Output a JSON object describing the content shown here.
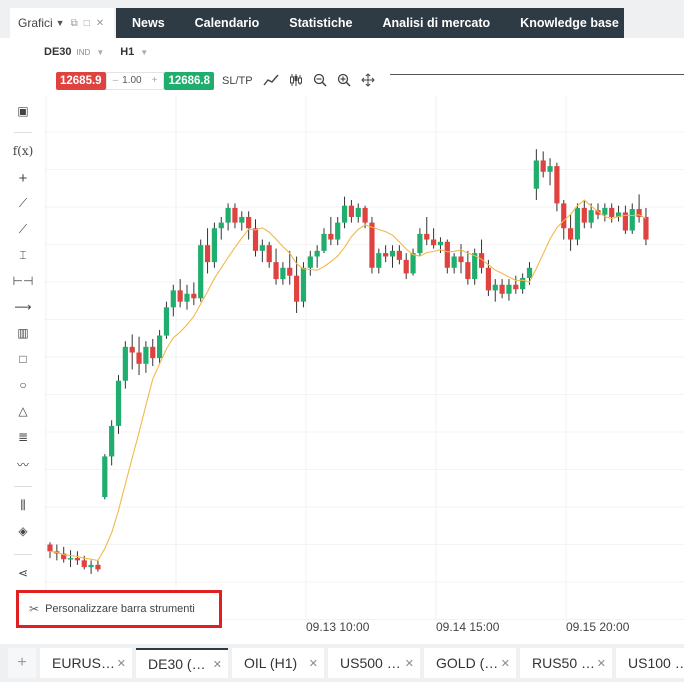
{
  "panel": {
    "label": "Grafici",
    "icons": [
      "caret-down-icon",
      "popout-icon",
      "maximize-icon",
      "close-icon"
    ]
  },
  "nav": {
    "tabs": [
      "News",
      "Calendario",
      "Statistiche",
      "Analisi di mercato",
      "Knowledge base"
    ]
  },
  "chart_header": {
    "symbol": "DE30",
    "symbol_type": "IND",
    "timeframe": "H1"
  },
  "trade": {
    "sell_price": "12685.9",
    "quantity": "1.00",
    "buy_price": "12686.8",
    "sltp": "SL/TP"
  },
  "tooltip": {
    "text": "Personalizzare barra strumenti"
  },
  "colors": {
    "up": "#1fae6d",
    "down": "#e0423f",
    "ma": "#f0b94a",
    "nav_bg": "#2e3a44",
    "highlight": "#e02020"
  },
  "chart_data": {
    "type": "candlestick",
    "x_tick_labels": [
      "09.13 10:00",
      "09.14 15:00",
      "09.15 20:00"
    ],
    "ylim": [
      12360,
      12800
    ],
    "candles": [
      [
        12410,
        12412,
        12398,
        12404
      ],
      [
        12404,
        12410,
        12396,
        12402
      ],
      [
        12402,
        12408,
        12394,
        12397
      ],
      [
        12397,
        12405,
        12390,
        12398
      ],
      [
        12398,
        12404,
        12392,
        12396
      ],
      [
        12396,
        12400,
        12388,
        12390
      ],
      [
        12390,
        12396,
        12384,
        12392
      ],
      [
        12392,
        12396,
        12386,
        12388
      ],
      [
        12452,
        12490,
        12450,
        12488
      ],
      [
        12488,
        12520,
        12480,
        12515
      ],
      [
        12515,
        12560,
        12508,
        12555
      ],
      [
        12555,
        12590,
        12548,
        12585
      ],
      [
        12585,
        12596,
        12565,
        12580
      ],
      [
        12580,
        12594,
        12560,
        12570
      ],
      [
        12570,
        12590,
        12562,
        12585
      ],
      [
        12585,
        12592,
        12568,
        12575
      ],
      [
        12575,
        12600,
        12570,
        12595
      ],
      [
        12595,
        12625,
        12592,
        12620
      ],
      [
        12620,
        12640,
        12612,
        12635
      ],
      [
        12635,
        12645,
        12620,
        12625
      ],
      [
        12625,
        12640,
        12618,
        12632
      ],
      [
        12632,
        12642,
        12622,
        12628
      ],
      [
        12628,
        12680,
        12625,
        12675
      ],
      [
        12675,
        12690,
        12650,
        12660
      ],
      [
        12660,
        12695,
        12655,
        12690
      ],
      [
        12690,
        12700,
        12680,
        12695
      ],
      [
        12695,
        12712,
        12688,
        12708
      ],
      [
        12708,
        12712,
        12690,
        12695
      ],
      [
        12695,
        12705,
        12688,
        12700
      ],
      [
        12700,
        12705,
        12680,
        12690
      ],
      [
        12690,
        12698,
        12665,
        12670
      ],
      [
        12670,
        12680,
        12660,
        12675
      ],
      [
        12675,
        12678,
        12655,
        12660
      ],
      [
        12660,
        12672,
        12640,
        12645
      ],
      [
        12645,
        12660,
        12640,
        12655
      ],
      [
        12655,
        12670,
        12640,
        12648
      ],
      [
        12648,
        12665,
        12615,
        12625
      ],
      [
        12625,
        12660,
        12620,
        12655
      ],
      [
        12655,
        12670,
        12648,
        12665
      ],
      [
        12665,
        12675,
        12655,
        12670
      ],
      [
        12670,
        12690,
        12668,
        12685
      ],
      [
        12685,
        12700,
        12675,
        12680
      ],
      [
        12680,
        12700,
        12675,
        12695
      ],
      [
        12695,
        12718,
        12690,
        12710
      ],
      [
        12710,
        12715,
        12695,
        12700
      ],
      [
        12700,
        12712,
        12695,
        12708
      ],
      [
        12708,
        12710,
        12690,
        12695
      ],
      [
        12695,
        12700,
        12650,
        12655
      ],
      [
        12655,
        12672,
        12650,
        12668
      ],
      [
        12668,
        12675,
        12660,
        12665
      ],
      [
        12665,
        12675,
        12655,
        12670
      ],
      [
        12670,
        12675,
        12658,
        12662
      ],
      [
        12662,
        12668,
        12645,
        12650
      ],
      [
        12650,
        12672,
        12648,
        12668
      ],
      [
        12668,
        12690,
        12665,
        12685
      ],
      [
        12685,
        12700,
        12675,
        12680
      ],
      [
        12680,
        12690,
        12672,
        12675
      ],
      [
        12675,
        12682,
        12668,
        12678
      ],
      [
        12678,
        12680,
        12650,
        12655
      ],
      [
        12655,
        12668,
        12650,
        12665
      ],
      [
        12665,
        12676,
        12650,
        12660
      ],
      [
        12660,
        12670,
        12640,
        12645
      ],
      [
        12645,
        12672,
        12640,
        12668
      ],
      [
        12668,
        12680,
        12650,
        12655
      ],
      [
        12655,
        12662,
        12630,
        12635
      ],
      [
        12635,
        12645,
        12625,
        12640
      ],
      [
        12640,
        12645,
        12628,
        12632
      ],
      [
        12632,
        12645,
        12626,
        12640
      ],
      [
        12640,
        12648,
        12632,
        12636
      ],
      [
        12636,
        12650,
        12632,
        12646
      ],
      [
        12646,
        12660,
        12640,
        12655
      ],
      [
        12725,
        12760,
        12715,
        12750
      ],
      [
        12750,
        12758,
        12735,
        12740
      ],
      [
        12740,
        12752,
        12728,
        12745
      ],
      [
        12745,
        12748,
        12705,
        12712
      ],
      [
        12712,
        12715,
        12680,
        12690
      ],
      [
        12690,
        12702,
        12670,
        12680
      ],
      [
        12680,
        12712,
        12675,
        12708
      ],
      [
        12708,
        12715,
        12690,
        12695
      ],
      [
        12695,
        12712,
        12690,
        12706
      ],
      [
        12706,
        12712,
        12698,
        12702
      ],
      [
        12702,
        12712,
        12696,
        12708
      ],
      [
        12708,
        12712,
        12695,
        12700
      ],
      [
        12700,
        12710,
        12696,
        12704
      ],
      [
        12704,
        12710,
        12685,
        12688
      ],
      [
        12688,
        12712,
        12685,
        12707
      ],
      [
        12707,
        12720,
        12695,
        12700
      ],
      [
        12700,
        12708,
        12675,
        12680
      ]
    ]
  },
  "bottom_tabs": [
    {
      "label": "EURUS…"
    },
    {
      "label": "DE30 (…"
    },
    {
      "label": "OIL (H1)"
    },
    {
      "label": "US500 …"
    },
    {
      "label": "GOLD (…"
    },
    {
      "label": "RUS50 …"
    },
    {
      "label": "US100 …"
    }
  ]
}
